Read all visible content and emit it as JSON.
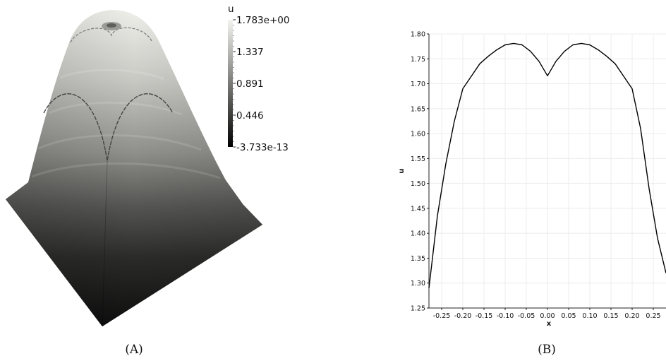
{
  "panel_a": {
    "caption": "(A)",
    "colorbar": {
      "title": "u",
      "labels": [
        "1.783e+00",
        "1.337",
        "0.891",
        "0.446",
        "-3.733e-13"
      ],
      "min": -3.733e-13,
      "max": 1.783,
      "colors": [
        "#000000",
        "#f4f4f0"
      ]
    }
  },
  "panel_b": {
    "caption": "(B)"
  },
  "chart_data": [
    {
      "type": "surface",
      "title": "",
      "series": [
        {
          "name": "u",
          "range": [
            -3.733e-13,
            1.783
          ]
        }
      ]
    },
    {
      "type": "line",
      "title": "",
      "xlabel": "x",
      "ylabel": "u",
      "xlim": [
        -0.28,
        0.28
      ],
      "ylim": [
        1.25,
        1.8
      ],
      "grid": true,
      "xticks": [
        -0.25,
        -0.2,
        -0.15,
        -0.1,
        -0.05,
        0.0,
        0.05,
        0.1,
        0.15,
        0.2,
        0.25
      ],
      "xtick_labels": [
        "-0.25",
        "-0.20",
        "-0.15",
        "-0.10",
        "-0.05",
        "0.00",
        "0.05",
        "0.10",
        "0.15",
        "0.20",
        "0.25"
      ],
      "yticks": [
        1.25,
        1.3,
        1.35,
        1.4,
        1.45,
        1.5,
        1.55,
        1.6,
        1.65,
        1.7,
        1.75,
        1.8
      ],
      "ytick_labels": [
        "1.25",
        "1.30",
        "1.35",
        "1.40",
        "1.45",
        "1.50",
        "1.55",
        "1.60",
        "1.65",
        "1.70",
        "1.75",
        "1.80"
      ],
      "series": [
        {
          "color": "#000000",
          "x": [
            -0.28,
            -0.26,
            -0.24,
            -0.22,
            -0.2,
            -0.18,
            -0.16,
            -0.14,
            -0.12,
            -0.1,
            -0.08,
            -0.06,
            -0.04,
            -0.02,
            0.0,
            0.02,
            0.04,
            0.06,
            0.08,
            0.1,
            0.12,
            0.14,
            0.16,
            0.18,
            0.2,
            0.22,
            0.24,
            0.26,
            0.28
          ],
          "y": [
            1.29,
            1.435,
            1.54,
            1.625,
            1.69,
            1.715,
            1.74,
            1.755,
            1.768,
            1.778,
            1.781,
            1.778,
            1.765,
            1.745,
            1.716,
            1.745,
            1.765,
            1.778,
            1.781,
            1.778,
            1.768,
            1.755,
            1.74,
            1.715,
            1.69,
            1.61,
            1.49,
            1.39,
            1.32
          ]
        }
      ]
    }
  ]
}
